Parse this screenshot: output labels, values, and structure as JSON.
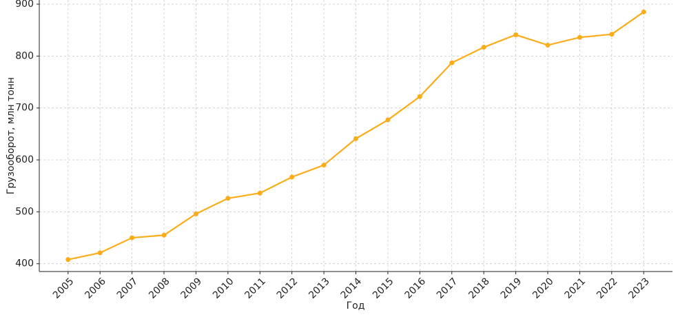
{
  "chart_data": {
    "type": "line",
    "x_label": "Год",
    "y_label": "Грузооборот, млн тонн",
    "x": [
      2005,
      2006,
      2007,
      2008,
      2009,
      2010,
      2011,
      2012,
      2013,
      2014,
      2015,
      2016,
      2017,
      2018,
      2019,
      2020,
      2021,
      2022,
      2023
    ],
    "series": [
      {
        "color": "#fbac18",
        "values": [
          408,
          421,
          450,
          455,
          496,
          526,
          536,
          567,
          590,
          641,
          677,
          722,
          787,
          817,
          841,
          821,
          836,
          842,
          885
        ]
      }
    ],
    "xlim": [
      2004.1,
      2023.9
    ],
    "xticks": [
      2005,
      2006,
      2007,
      2008,
      2009,
      2010,
      2011,
      2012,
      2013,
      2014,
      2015,
      2016,
      2017,
      2018,
      2019,
      2020,
      2021,
      2022,
      2023
    ],
    "ylim": [
      385,
      908
    ],
    "yticks": [
      400,
      500,
      600,
      700,
      800,
      900
    ],
    "grid": true
  }
}
